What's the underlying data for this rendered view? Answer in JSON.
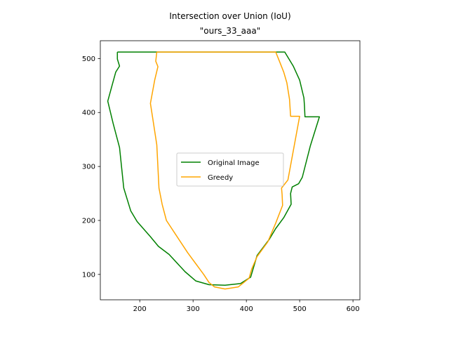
{
  "chart_data": {
    "type": "line",
    "title": "Intersection over Union (IoU)",
    "subtitle": "\"ours_33_aaa\"",
    "xlabel": "",
    "ylabel": "",
    "xlim": [
      126,
      613
    ],
    "ylim": [
      53,
      533
    ],
    "xticks": [
      200,
      300,
      400,
      500,
      600
    ],
    "yticks": [
      100,
      200,
      300,
      400,
      500
    ],
    "grid": false,
    "legend_position": "center",
    "series": [
      {
        "name": "Original Image",
        "color": "#008000",
        "points": [
          [
            158,
            512
          ],
          [
            472,
            512
          ],
          [
            488,
            486
          ],
          [
            500,
            460
          ],
          [
            508,
            427
          ],
          [
            509,
            412
          ],
          [
            510,
            392
          ],
          [
            537,
            392
          ],
          [
            520,
            338
          ],
          [
            505,
            280
          ],
          [
            498,
            268
          ],
          [
            486,
            262
          ],
          [
            483,
            250
          ],
          [
            484,
            230
          ],
          [
            470,
            205
          ],
          [
            455,
            185
          ],
          [
            443,
            165
          ],
          [
            420,
            135
          ],
          [
            408,
            95
          ],
          [
            389,
            83
          ],
          [
            360,
            80
          ],
          [
            330,
            81
          ],
          [
            305,
            88
          ],
          [
            285,
            105
          ],
          [
            255,
            137
          ],
          [
            235,
            152
          ],
          [
            220,
            170
          ],
          [
            195,
            198
          ],
          [
            183,
            218
          ],
          [
            170,
            260
          ],
          [
            162,
            335
          ],
          [
            150,
            380
          ],
          [
            140,
            421
          ],
          [
            148,
            450
          ],
          [
            155,
            475
          ],
          [
            162,
            486
          ],
          [
            158,
            499
          ],
          [
            158,
            512
          ]
        ]
      },
      {
        "name": "Greedy",
        "color": "#ffa500",
        "points": [
          [
            232,
            512
          ],
          [
            455,
            512
          ],
          [
            462,
            495
          ],
          [
            470,
            475
          ],
          [
            476,
            455
          ],
          [
            481,
            424
          ],
          [
            483,
            393
          ],
          [
            500,
            393
          ],
          [
            490,
            340
          ],
          [
            478,
            275
          ],
          [
            466,
            260
          ],
          [
            467,
            248
          ],
          [
            468,
            228
          ],
          [
            455,
            195
          ],
          [
            440,
            160
          ],
          [
            420,
            133
          ],
          [
            410,
            110
          ],
          [
            405,
            93
          ],
          [
            385,
            77
          ],
          [
            360,
            73
          ],
          [
            340,
            77
          ],
          [
            330,
            85
          ],
          [
            320,
            100
          ],
          [
            305,
            120
          ],
          [
            290,
            140
          ],
          [
            270,
            170
          ],
          [
            250,
            200
          ],
          [
            242,
            230
          ],
          [
            236,
            260
          ],
          [
            232,
            340
          ],
          [
            225,
            385
          ],
          [
            220,
            417
          ],
          [
            228,
            460
          ],
          [
            234,
            485
          ],
          [
            230,
            495
          ],
          [
            232,
            512
          ]
        ]
      }
    ]
  }
}
